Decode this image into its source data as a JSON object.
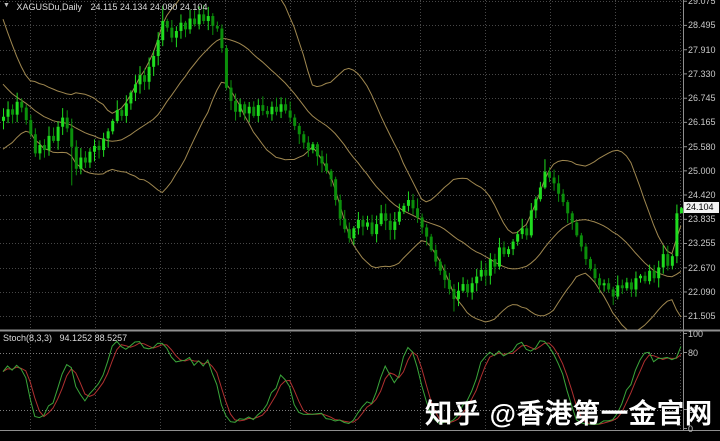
{
  "window": {
    "marker": "▼",
    "symbol_label": "XAGUSDu,Daily",
    "ohlc": "24.115 24.134 24.080 24.104"
  },
  "price_axis": {
    "current_price": "24.104"
  },
  "indicator_panel": {
    "label": "Stoch(8,3,3)",
    "values": "94.1252 88.5257"
  },
  "watermark": {
    "text": "知乎 @香港第一金官网"
  },
  "colors": {
    "background": "#000000",
    "grid": "#474747",
    "bull": "#1fdc1f",
    "bear": "#0b8f0b",
    "bollinger": "#A08850",
    "stoch_k": "#3aa63a",
    "stoch_d": "#b03030",
    "separator": "#8f8f8f",
    "axis_text": "#c9c9c9",
    "price_tag_bg": "#f2f2f2",
    "level_line": "#7d7d7d"
  },
  "chart_data": {
    "type": "candlestick",
    "symbol": "XAGUSDu",
    "timeframe": "Daily",
    "last_ohlc": {
      "open": 24.115,
      "high": 24.134,
      "low": 24.08,
      "close": 24.104
    },
    "y_axis_labels": [
      "29.075",
      "28.495",
      "27.910",
      "27.330",
      "26.745",
      "26.165",
      "25.580",
      "25.000",
      "24.420",
      "23.835",
      "23.255",
      "22.670",
      "22.090",
      "21.505"
    ],
    "ylim": [
      21.2,
      29.1
    ],
    "grid": true,
    "first_open": 26.2,
    "closes": [
      26.3,
      26.48,
      26.35,
      26.66,
      26.52,
      26.22,
      25.88,
      25.42,
      25.62,
      25.5,
      25.84,
      25.72,
      26.06,
      26.28,
      26.02,
      25.58,
      25.05,
      25.32,
      25.2,
      25.46,
      25.6,
      25.5,
      25.78,
      25.95,
      26.2,
      26.46,
      26.32,
      26.62,
      26.88,
      27.08,
      27.3,
      27.14,
      27.5,
      27.76,
      28.14,
      28.6,
      28.44,
      28.2,
      28.36,
      28.56,
      28.4,
      28.66,
      28.52,
      28.76,
      28.6,
      28.72,
      28.48,
      28.42,
      27.95,
      27.0,
      26.68,
      26.42,
      26.6,
      26.38,
      26.54,
      26.32,
      26.58,
      26.44,
      26.36,
      26.54,
      26.42,
      26.6,
      26.45,
      26.28,
      26.08,
      25.88,
      25.68,
      25.5,
      25.64,
      25.35,
      25.18,
      25.0,
      24.8,
      24.3,
      23.85,
      23.6,
      23.38,
      23.62,
      23.82,
      23.66,
      23.76,
      23.48,
      23.72,
      23.98,
      23.8,
      23.58,
      23.78,
      24.02,
      24.16,
      24.3,
      24.1,
      23.88,
      23.64,
      23.42,
      23.1,
      22.82,
      22.6,
      22.38,
      22.16,
      21.92,
      22.12,
      22.28,
      22.08,
      22.3,
      22.46,
      22.62,
      22.48,
      22.88,
      22.7,
      23.16,
      23.0,
      23.12,
      23.3,
      23.48,
      23.62,
      23.45,
      24.05,
      24.32,
      24.6,
      24.98,
      24.84,
      24.7,
      24.45,
      24.25,
      23.98,
      23.76,
      23.45,
      23.18,
      22.88,
      22.65,
      22.42,
      22.25,
      22.3,
      22.15,
      21.98,
      22.25,
      22.18,
      22.32,
      22.15,
      22.42,
      22.48,
      22.35,
      22.6,
      22.42,
      22.68,
      23.0,
      22.72,
      22.95,
      23.98,
      24.104
    ],
    "wick_overrides": {
      "15": {
        "lo": 24.65
      },
      "35": {
        "hi": 28.97
      },
      "99": {
        "lo": 21.62
      },
      "119": {
        "hi": 25.28
      },
      "134": {
        "lo": 21.78
      },
      "149": {
        "hi": 24.134,
        "lo": 24.08
      }
    },
    "band_warmup_closes": [
      29.0,
      28.8,
      28.55,
      28.3,
      28.0,
      27.75,
      27.5,
      27.3,
      27.1,
      26.95,
      26.8,
      26.7,
      26.6,
      26.55,
      26.5,
      26.45,
      26.42,
      26.4,
      26.36,
      26.33
    ],
    "overlays": [
      {
        "name": "Bollinger Bands",
        "period": 20,
        "deviation": 2,
        "color": "#A08850"
      }
    ],
    "indicator": {
      "name": "Stochastic Oscillator",
      "label": "Stoch(8,3,3)",
      "params": [
        8,
        3,
        3
      ],
      "series": [
        {
          "name": "%K",
          "color": "#3aa63a",
          "last": 94.1252
        },
        {
          "name": "%D",
          "color": "#b03030",
          "last": 88.5257
        }
      ],
      "range": [
        0,
        100
      ],
      "levels": [
        80,
        20
      ],
      "axis_labels": [
        "100",
        "80",
        "20",
        "0"
      ]
    }
  }
}
